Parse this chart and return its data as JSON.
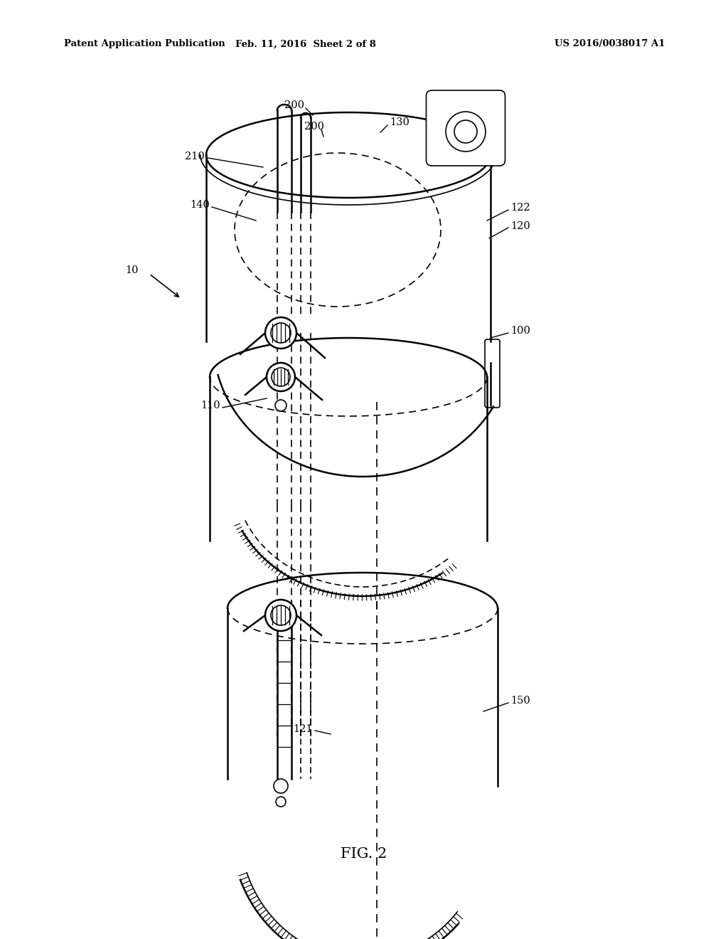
{
  "title_left": "Patent Application Publication",
  "title_mid": "Feb. 11, 2016  Sheet 2 of 8",
  "title_right": "US 2016/0038017 A1",
  "fig_label": "FIG. 2",
  "bg_color": "#ffffff",
  "line_color": "#000000"
}
